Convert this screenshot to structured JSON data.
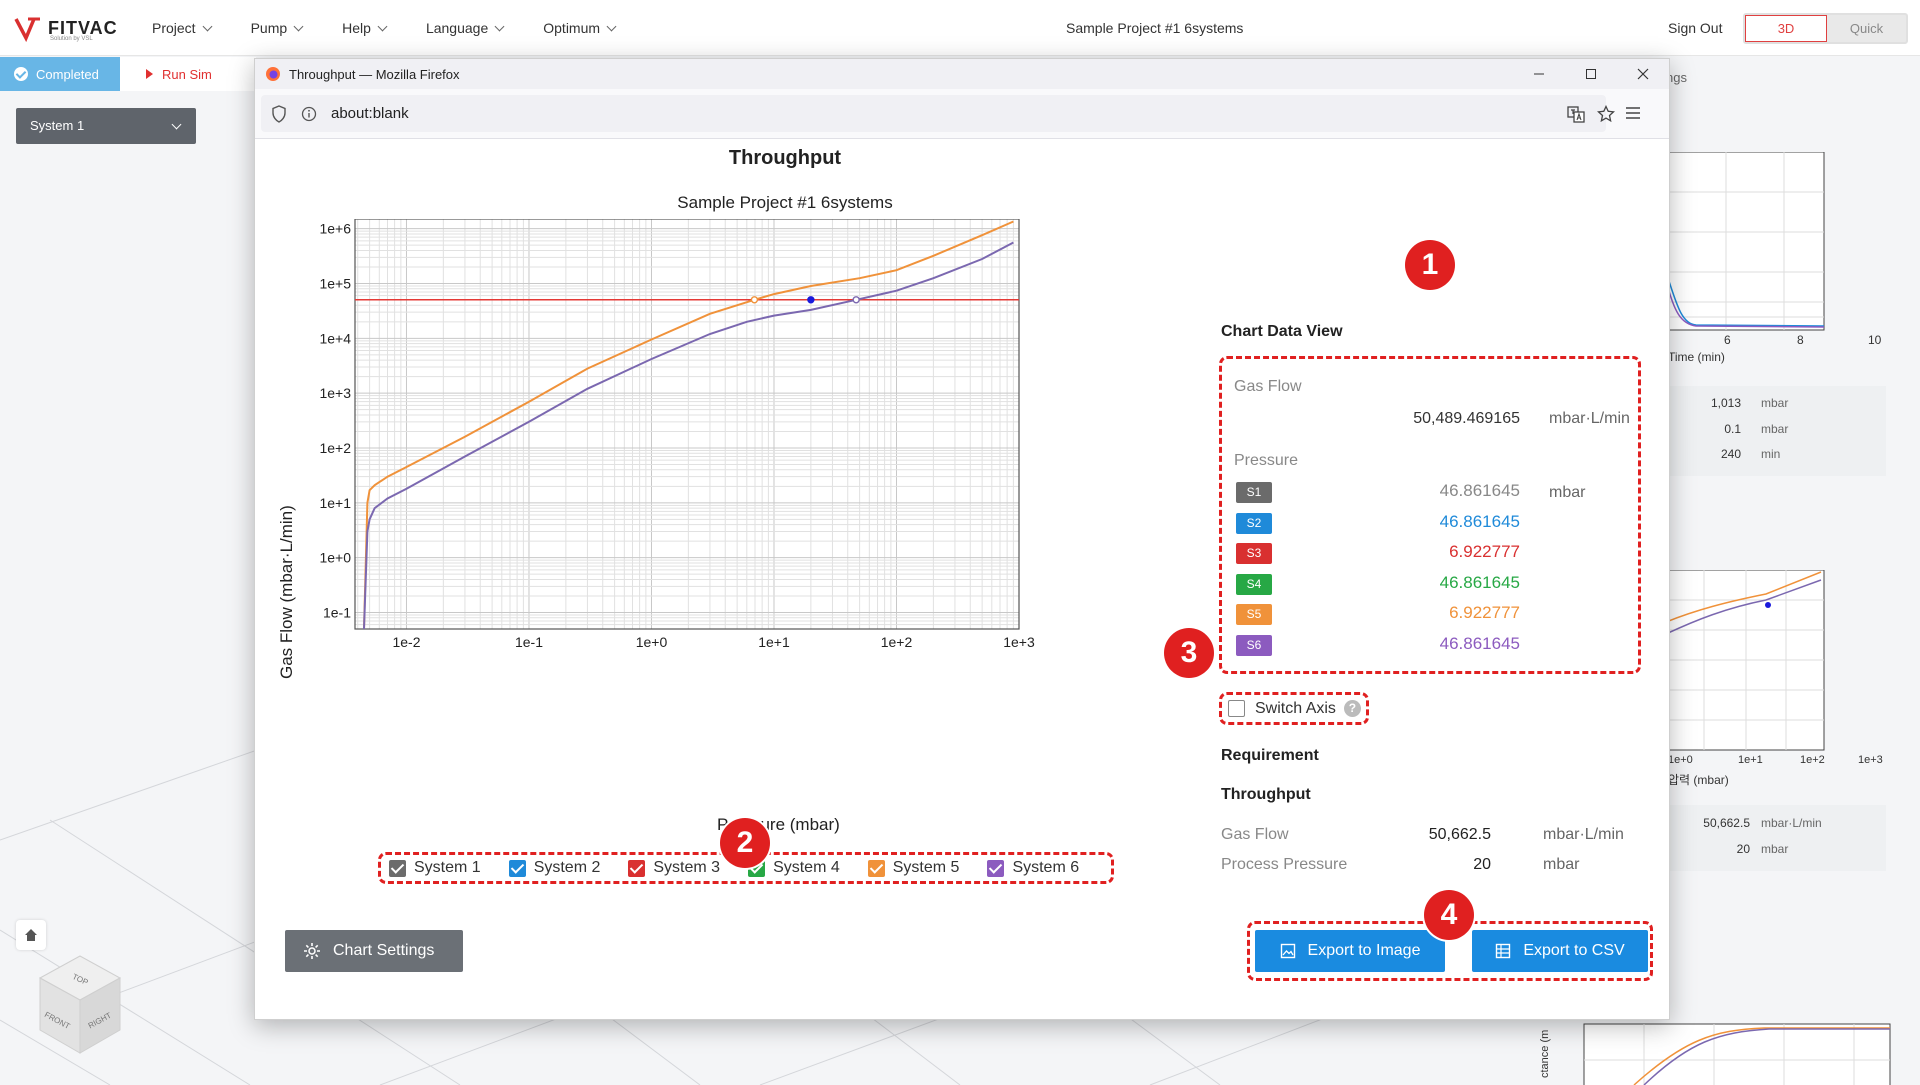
{
  "app": {
    "logo_text": "FITVAC",
    "logo_sub": "Solution by VSL",
    "menu": [
      {
        "label": "Project"
      },
      {
        "label": "Pump"
      },
      {
        "label": "Help"
      },
      {
        "label": "Language"
      },
      {
        "label": "Optimum"
      }
    ],
    "project_title": "Sample Project #1 6systems",
    "sign_out": "Sign Out",
    "view_toggle": {
      "active": "3D",
      "other": "Quick"
    },
    "status": "Completed",
    "run_sim": "Run Sim",
    "system_select": "System 1"
  },
  "right_panel": {
    "partial_tab": "ngs",
    "chart1": {
      "ticks": [
        "6",
        "8",
        "10"
      ],
      "xlabel": "Time (min)"
    },
    "table1": [
      {
        "value": "1,013",
        "unit": "mbar"
      },
      {
        "value": "0.1",
        "unit": "mbar"
      },
      {
        "value": "240",
        "unit": "min"
      }
    ],
    "chart2": {
      "ticks": [
        "1e+0",
        "1e+1",
        "1e+2",
        "1e+3"
      ],
      "xlabel": "압력 (mbar)"
    },
    "table2": [
      {
        "value": "50,662.5",
        "unit": "mbar·L/min"
      },
      {
        "value": "20",
        "unit": "mbar"
      }
    ],
    "chart3": {
      "ylabel_partial": "ctance (m"
    }
  },
  "cube": {
    "top": "TOP",
    "front": "FRONT",
    "right": "RIGHT"
  },
  "firefox": {
    "title": "Throughput — Mozilla Firefox",
    "url": "about:blank"
  },
  "chart_data": {
    "type": "line",
    "title": "Throughput",
    "subtitle": "Sample Project #1 6systems",
    "xlabel": "Pressure (mbar)",
    "ylabel": "Gas Flow (mbar·L/min)",
    "x_scale": "log",
    "y_scale": "log",
    "xlim": [
      0.0038,
      1000
    ],
    "ylim": [
      0.05,
      1500000
    ],
    "x_ticks": [
      "1e-2",
      "1e-1",
      "1e+0",
      "1e+1",
      "1e+2",
      "1e+3"
    ],
    "y_ticks": [
      "1e-1",
      "1e+0",
      "1e+1",
      "1e+2",
      "1e+3",
      "1e+4",
      "1e+5",
      "1e+6"
    ],
    "grid": true,
    "reference_line": {
      "y": 50489.469165,
      "color": "#e53935"
    },
    "series": [
      {
        "name": "System 5",
        "color": "#f0923a",
        "points": [
          [
            0.0045,
            0.05
          ],
          [
            0.0048,
            10
          ],
          [
            0.005,
            17
          ],
          [
            0.0055,
            21
          ],
          [
            0.007,
            30
          ],
          [
            0.01,
            45
          ],
          [
            0.03,
            160
          ],
          [
            0.1,
            700
          ],
          [
            0.3,
            2800
          ],
          [
            1,
            9500
          ],
          [
            3,
            28000
          ],
          [
            6.922777,
            50489.47
          ],
          [
            10,
            64000
          ],
          [
            20,
            90000
          ],
          [
            50,
            125000
          ],
          [
            100,
            175000
          ],
          [
            200,
            320000
          ],
          [
            500,
            760000
          ],
          [
            900,
            1350000
          ]
        ]
      },
      {
        "name": "System 6",
        "color": "#7b68b0",
        "points": [
          [
            0.0045,
            0.05
          ],
          [
            0.0048,
            3
          ],
          [
            0.005,
            5
          ],
          [
            0.0055,
            8
          ],
          [
            0.007,
            12
          ],
          [
            0.01,
            18
          ],
          [
            0.03,
            70
          ],
          [
            0.1,
            300
          ],
          [
            0.3,
            1200
          ],
          [
            1,
            4200
          ],
          [
            3,
            12000
          ],
          [
            6,
            20000
          ],
          [
            10,
            26000
          ],
          [
            20,
            33000
          ],
          [
            46.861645,
            50489.47
          ],
          [
            100,
            74000
          ],
          [
            200,
            125000
          ],
          [
            500,
            280000
          ],
          [
            900,
            560000
          ]
        ]
      }
    ],
    "markers": [
      {
        "x": 6.922777,
        "y": 50489.469165,
        "style": "hollow",
        "color": "#f0923a"
      },
      {
        "x": 20,
        "y": 50489.469165,
        "style": "filled",
        "color": "#1a1adc"
      },
      {
        "x": 46.861645,
        "y": 50489.469165,
        "style": "hollow",
        "color": "#7b68b0"
      }
    ],
    "legend": [
      {
        "name": "System 1",
        "color": "#6b6b6b",
        "checked": true
      },
      {
        "name": "System 2",
        "color": "#1f8ad9",
        "checked": true
      },
      {
        "name": "System 3",
        "color": "#d93030",
        "checked": true
      },
      {
        "name": "System 4",
        "color": "#27a845",
        "checked": true
      },
      {
        "name": "System 5",
        "color": "#f0923a",
        "checked": true
      },
      {
        "name": "System 6",
        "color": "#8c5bbf",
        "checked": true
      }
    ]
  },
  "data_view": {
    "title": "Chart Data View",
    "gas_flow_label": "Gas Flow",
    "gas_flow_value": "50,489.469165",
    "gas_flow_unit": "mbar·L/min",
    "pressure_label": "Pressure",
    "pressure_unit": "mbar",
    "systems": [
      {
        "badge": "S1",
        "value": "46.861645",
        "color": "#6b6b6b",
        "value_color": "#888888"
      },
      {
        "badge": "S2",
        "value": "46.861645",
        "color": "#1f8ad9",
        "value_color": "#1f8ad9"
      },
      {
        "badge": "S3",
        "value": "6.922777",
        "color": "#d93030",
        "value_color": "#d93030"
      },
      {
        "badge": "S4",
        "value": "46.861645",
        "color": "#27a845",
        "value_color": "#27a845"
      },
      {
        "badge": "S5",
        "value": "6.922777",
        "color": "#f0923a",
        "value_color": "#f0923a"
      },
      {
        "badge": "S6",
        "value": "46.861645",
        "color": "#8c5bbf",
        "value_color": "#8c5bbf"
      }
    ]
  },
  "switch_axis": {
    "label": "Switch Axis",
    "checked": false,
    "help": "?"
  },
  "requirement": {
    "title": "Requirement",
    "subtitle": "Throughput",
    "rows": [
      {
        "label": "Gas Flow",
        "value": "50,662.5",
        "unit": "mbar·L/min"
      },
      {
        "label": "Process Pressure",
        "value": "20",
        "unit": "mbar"
      }
    ]
  },
  "buttons": {
    "chart_settings": "Chart Settings",
    "export_image": "Export to Image",
    "export_csv": "Export to CSV"
  },
  "callouts": [
    "1",
    "2",
    "3",
    "4"
  ]
}
